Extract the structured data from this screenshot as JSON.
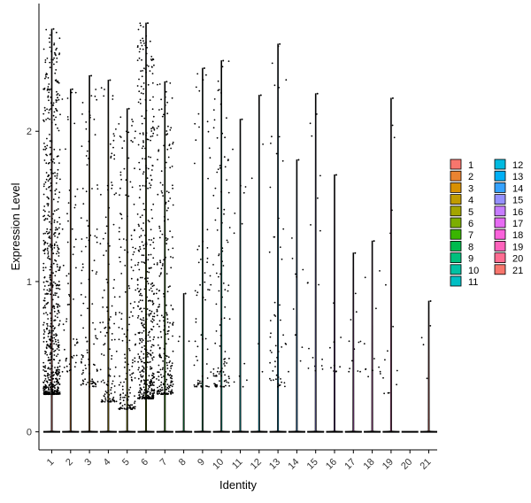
{
  "chart_data": {
    "type": "violin",
    "xlabel": "Identity",
    "ylabel": "Expression Level",
    "ylim": [
      -0.12,
      2.85
    ],
    "yticks": [
      0,
      1,
      2
    ],
    "ytick_labels": [
      "0",
      "1",
      "2"
    ],
    "grid": false,
    "legend_position": "right",
    "legend_columns": 2,
    "categories": [
      "1",
      "2",
      "3",
      "4",
      "5",
      "6",
      "7",
      "8",
      "9",
      "10",
      "11",
      "12",
      "13",
      "14",
      "15",
      "16",
      "17",
      "18",
      "19",
      "20",
      "21"
    ],
    "colors": [
      "#F8766D",
      "#EA8331",
      "#D89000",
      "#C09B00",
      "#A3A500",
      "#7CAE00",
      "#39B600",
      "#00BB4E",
      "#00BF7D",
      "#00C1A3",
      "#00BFC4",
      "#00BAE0",
      "#00B0F6",
      "#35A2FF",
      "#9590FF",
      "#C77CFF",
      "#E76BF3",
      "#FA62DB",
      "#FF62BC",
      "#FF6C91",
      "#F8766D"
    ],
    "max_expression": [
      2.68,
      2.28,
      2.37,
      2.34,
      2.15,
      2.72,
      2.33,
      0.92,
      2.42,
      2.47,
      2.08,
      2.24,
      2.58,
      1.81,
      2.25,
      1.71,
      1.19,
      1.27,
      2.22,
      0.0,
      0.87
    ],
    "expressing_cells": [
      700,
      60,
      110,
      130,
      170,
      480,
      260,
      3,
      70,
      110,
      12,
      4,
      55,
      10,
      18,
      10,
      12,
      12,
      14,
      0,
      4
    ],
    "min_expressed": [
      0.25,
      0.4,
      0.3,
      0.2,
      0.15,
      0.22,
      0.25,
      0.6,
      0.3,
      0.3,
      0.3,
      0.4,
      0.3,
      0.4,
      0.4,
      0.4,
      0.4,
      0.35,
      0.25,
      0.0,
      0.3
    ],
    "legend": {
      "entries": [
        "1",
        "2",
        "3",
        "4",
        "5",
        "6",
        "7",
        "8",
        "9",
        "10",
        "11",
        "12",
        "13",
        "14",
        "15",
        "16",
        "17",
        "18",
        "19",
        "20",
        "21"
      ]
    }
  }
}
